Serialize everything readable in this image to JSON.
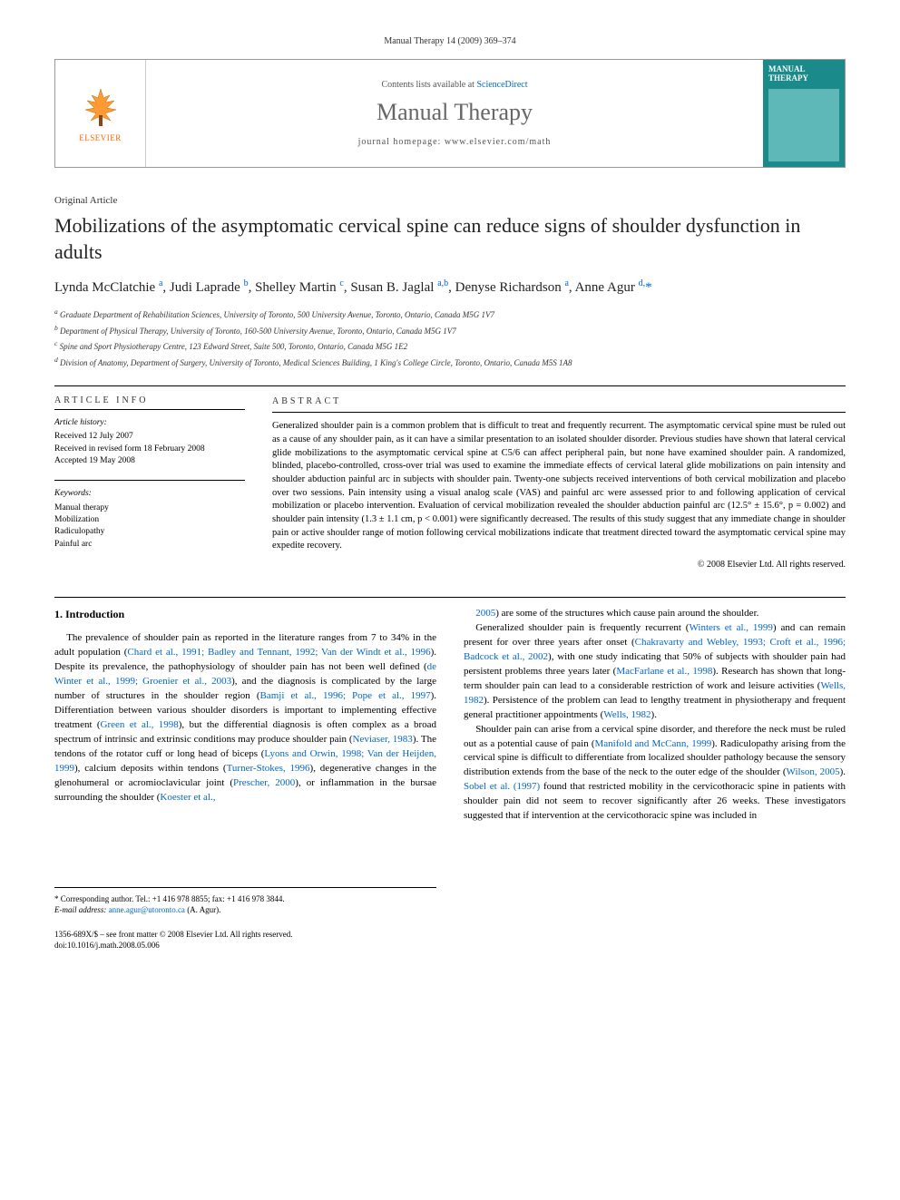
{
  "header": {
    "citation": "Manual Therapy 14 (2009) 369–374"
  },
  "masthead": {
    "publisher": "ELSEVIER",
    "contents_prefix": "Contents lists available at ",
    "contents_link": "ScienceDirect",
    "journal": "Manual Therapy",
    "homepage_prefix": "journal homepage: ",
    "homepage": "www.elsevier.com/math",
    "cover_title": "MANUAL THERAPY"
  },
  "article": {
    "type": "Original Article",
    "title": "Mobilizations of the asymptomatic cervical spine can reduce signs of shoulder dysfunction in adults",
    "authors_html": "Lynda McClatchie <sup>a</sup>, Judi Laprade <sup>b</sup>, Shelley Martin <sup>c</sup>, Susan B. Jaglal <sup>a,b</sup>, Denyse Richardson <sup>a</sup>, Anne Agur <sup>d,</sup><span class='star'>*</span>",
    "affiliations": [
      "a Graduate Department of Rehabilitation Sciences, University of Toronto, 500 University Avenue, Toronto, Ontario, Canada M5G 1V7",
      "b Department of Physical Therapy, University of Toronto, 160-500 University Avenue, Toronto, Ontario, Canada M5G 1V7",
      "c Spine and Sport Physiotherapy Centre, 123 Edward Street, Suite 500, Toronto, Ontario, Canada M5G 1E2",
      "d Division of Anatomy, Department of Surgery, University of Toronto, Medical Sciences Building, 1 King's College Circle, Toronto, Ontario, Canada M5S 1A8"
    ]
  },
  "info": {
    "section_label": "ARTICLE INFO",
    "history_label": "Article history:",
    "received": "Received 12 July 2007",
    "revised": "Received in revised form 18 February 2008",
    "accepted": "Accepted 19 May 2008",
    "keywords_label": "Keywords:",
    "keywords": [
      "Manual therapy",
      "Mobilization",
      "Radiculopathy",
      "Painful arc"
    ]
  },
  "abstract": {
    "section_label": "ABSTRACT",
    "text": "Generalized shoulder pain is a common problem that is difficult to treat and frequently recurrent. The asymptomatic cervical spine must be ruled out as a cause of any shoulder pain, as it can have a similar presentation to an isolated shoulder disorder. Previous studies have shown that lateral cervical glide mobilizations to the asymptomatic cervical spine at C5/6 can affect peripheral pain, but none have examined shoulder pain. A randomized, blinded, placebo-controlled, cross-over trial was used to examine the immediate effects of cervical lateral glide mobilizations on pain intensity and shoulder abduction painful arc in subjects with shoulder pain. Twenty-one subjects received interventions of both cervical mobilization and placebo over two sessions. Pain intensity using a visual analog scale (VAS) and painful arc were assessed prior to and following application of cervical mobilization or placebo intervention. Evaluation of cervical mobilization revealed the shoulder abduction painful arc (12.5° ± 15.6°, p = 0.002) and shoulder pain intensity (1.3 ± 1.1 cm, p < 0.001) were significantly decreased. The results of this study suggest that any immediate change in shoulder pain or active shoulder range of motion following cervical mobilizations indicate that treatment directed toward the asymptomatic cervical spine may expedite recovery.",
    "copyright": "© 2008 Elsevier Ltd. All rights reserved."
  },
  "body": {
    "heading": "1. Introduction",
    "col1_paras": [
      "The prevalence of shoulder pain as reported in the literature ranges from 7 to 34% in the adult population (<span class='ref'>Chard et al., 1991; Badley and Tennant, 1992; Van der Windt et al., 1996</span>). Despite its prevalence, the pathophysiology of shoulder pain has not been well defined (<span class='ref'>de Winter et al., 1999; Groenier et al., 2003</span>), and the diagnosis is complicated by the large number of structures in the shoulder region (<span class='ref'>Bamji et al., 1996; Pope et al., 1997</span>). Differentiation between various shoulder disorders is important to implementing effective treatment (<span class='ref'>Green et al., 1998</span>), but the differential diagnosis is often complex as a broad spectrum of intrinsic and extrinsic conditions may produce shoulder pain (<span class='ref'>Neviaser, 1983</span>). The tendons of the rotator cuff or long head of biceps (<span class='ref'>Lyons and Orwin, 1998; Van der Heijden, 1999</span>), calcium deposits within tendons (<span class='ref'>Turner-Stokes, 1996</span>), degenerative changes in the glenohumeral or acromioclavicular joint (<span class='ref'>Prescher, 2000</span>), or inflammation in the bursae surrounding the shoulder (<span class='ref'>Koester et al.,</span>"
    ],
    "col2_paras": [
      "<span class='ref'>2005</span>) are some of the structures which cause pain around the shoulder.",
      "Generalized shoulder pain is frequently recurrent (<span class='ref'>Winters et al., 1999</span>) and can remain present for over three years after onset (<span class='ref'>Chakravarty and Webley, 1993; Croft et al., 1996; Badcock et al., 2002</span>), with one study indicating that 50% of subjects with shoulder pain had persistent problems three years later (<span class='ref'>MacFarlane et al., 1998</span>). Research has shown that long-term shoulder pain can lead to a considerable restriction of work and leisure activities (<span class='ref'>Wells, 1982</span>). Persistence of the problem can lead to lengthy treatment in physiotherapy and frequent general practitioner appointments (<span class='ref'>Wells, 1982</span>).",
      "Shoulder pain can arise from a cervical spine disorder, and therefore the neck must be ruled out as a potential cause of pain (<span class='ref'>Manifold and McCann, 1999</span>). Radiculopathy arising from the cervical spine is difficult to differentiate from localized shoulder pathology because the sensory distribution extends from the base of the neck to the outer edge of the shoulder (<span class='ref'>Wilson, 2005</span>). <span class='ref'>Sobel et al. (1997)</span> found that restricted mobility in the cervicothoracic spine in patients with shoulder pain did not seem to recover significantly after 26 weeks. These investigators suggested that if intervention at the cervicothoracic spine was included in"
    ]
  },
  "footer": {
    "corr": "* Corresponding author. Tel.: +1 416 978 8855; fax: +1 416 978 3844.",
    "email_label": "E-mail address:",
    "email": "anne.agur@utoronto.ca",
    "email_suffix": "(A. Agur).",
    "issn": "1356-689X/$ – see front matter © 2008 Elsevier Ltd. All rights reserved.",
    "doi": "doi:10.1016/j.math.2008.05.006"
  },
  "colors": {
    "link": "#0066cc",
    "elsevier_orange": "#ff6600",
    "cover_bg": "#1a8a8a"
  }
}
